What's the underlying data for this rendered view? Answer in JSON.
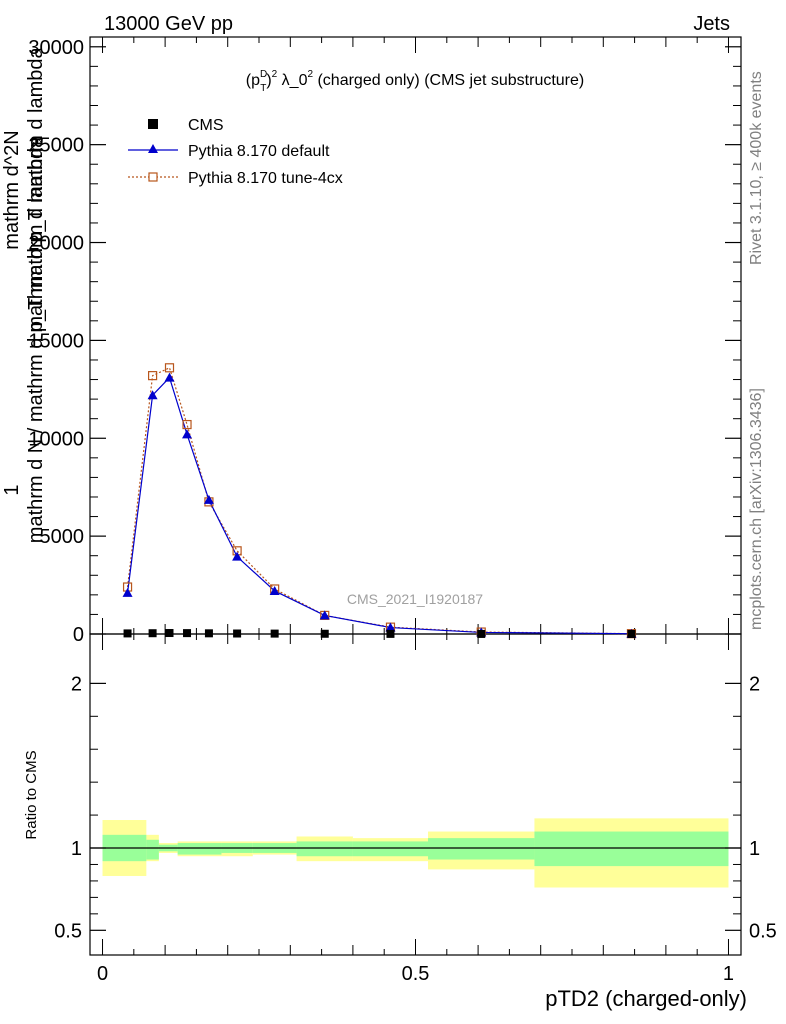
{
  "header": {
    "left": "13000 GeV pp",
    "right": "Jets"
  },
  "side_labels": {
    "rivet": "Rivet 3.1.10, ≥ 400k events",
    "mcplots": "mcplots.cern.ch [arXiv:1306.3436]"
  },
  "watermark": "CMS_2021_I1920187",
  "colors": {
    "data": "#000000",
    "default": "#0000cc",
    "tune": "#b8561c",
    "band_outer": "#ffff99",
    "band_inner": "#99ff99"
  },
  "chart_data": [
    {
      "type": "line",
      "title_parts": {
        "base": "(p",
        "sup1": "D",
        "sub1": "T",
        "mid": ")",
        "sup2": "2",
        "rest1": " λ_0",
        "sup3": "2",
        "rest2": " (charged only) (CMS jet substructure)"
      },
      "ylabel_lines": [
        "1",
        "mathrm d N / mathrm d p_T mathrm d lambda",
        "mathrm d^2N",
        "mathrm d p_T mathrm d lambda"
      ],
      "yticks": [
        0,
        5000,
        10000,
        15000,
        20000,
        25000,
        30000
      ],
      "ytick_labels": [
        "0",
        "5000",
        "10000",
        "15000",
        "20000",
        "25000",
        "30000"
      ],
      "ylim": [
        0,
        30500
      ],
      "xlim": [
        -0.02,
        1.02
      ],
      "legend_position": "top-left",
      "legend": [
        "CMS",
        "Pythia 8.170 default",
        "Pythia 8.170 tune-4cx"
      ],
      "series": [
        {
          "name": "CMS",
          "x": [
            0.04,
            0.08,
            0.107,
            0.135,
            0.17,
            0.215,
            0.275,
            0.355,
            0.46,
            0.605,
            0.845
          ],
          "y": [
            30,
            40,
            50,
            45,
            35,
            25,
            20,
            12,
            6,
            3,
            1
          ]
        },
        {
          "name": "Pythia 8.170 default",
          "x": [
            0.04,
            0.08,
            0.107,
            0.135,
            0.17,
            0.215,
            0.275,
            0.355,
            0.46,
            0.605,
            0.845
          ],
          "y": [
            2100,
            12200,
            13100,
            10200,
            6850,
            3950,
            2200,
            950,
            330,
            80,
            15
          ]
        },
        {
          "name": "Pythia 8.170 tune-4cx",
          "x": [
            0.04,
            0.08,
            0.107,
            0.135,
            0.17,
            0.215,
            0.275,
            0.355,
            0.46,
            0.605,
            0.845
          ],
          "y": [
            2400,
            13200,
            13600,
            10700,
            6750,
            4250,
            2300,
            950,
            350,
            100,
            18
          ]
        }
      ]
    },
    {
      "type": "area",
      "ylabel": "Ratio to CMS",
      "xlabel": "pTD2 (charged-only)",
      "xticks": [
        0,
        0.5,
        1
      ],
      "xtick_labels": [
        "0",
        "0.5",
        "1"
      ],
      "yticks": [
        0.5,
        1,
        2
      ],
      "ytick_labels": [
        "0.5",
        "1",
        "2"
      ],
      "ylim": [
        0.35,
        2.3
      ],
      "bins": [
        {
          "lo": 0.0,
          "hi": 0.07,
          "inner": [
            0.92,
            1.08
          ],
          "outer": [
            0.83,
            1.17
          ]
        },
        {
          "lo": 0.07,
          "hi": 0.09,
          "inner": [
            0.93,
            1.05
          ],
          "outer": [
            0.92,
            1.08
          ]
        },
        {
          "lo": 0.09,
          "hi": 0.12,
          "inner": [
            0.98,
            1.02
          ],
          "outer": [
            0.97,
            1.03
          ]
        },
        {
          "lo": 0.12,
          "hi": 0.19,
          "inner": [
            0.96,
            1.03
          ],
          "outer": [
            0.95,
            1.04
          ]
        },
        {
          "lo": 0.19,
          "hi": 0.24,
          "inner": [
            0.97,
            1.03
          ],
          "outer": [
            0.95,
            1.04
          ]
        },
        {
          "lo": 0.24,
          "hi": 0.31,
          "inner": [
            0.97,
            1.03
          ],
          "outer": [
            0.96,
            1.04
          ]
        },
        {
          "lo": 0.31,
          "hi": 0.4,
          "inner": [
            0.95,
            1.04
          ],
          "outer": [
            0.92,
            1.07
          ]
        },
        {
          "lo": 0.4,
          "hi": 0.52,
          "inner": [
            0.95,
            1.04
          ],
          "outer": [
            0.92,
            1.06
          ]
        },
        {
          "lo": 0.52,
          "hi": 0.69,
          "inner": [
            0.93,
            1.06
          ],
          "outer": [
            0.87,
            1.1
          ]
        },
        {
          "lo": 0.69,
          "hi": 1.0,
          "inner": [
            0.89,
            1.1
          ],
          "outer": [
            0.76,
            1.18
          ]
        }
      ]
    }
  ]
}
